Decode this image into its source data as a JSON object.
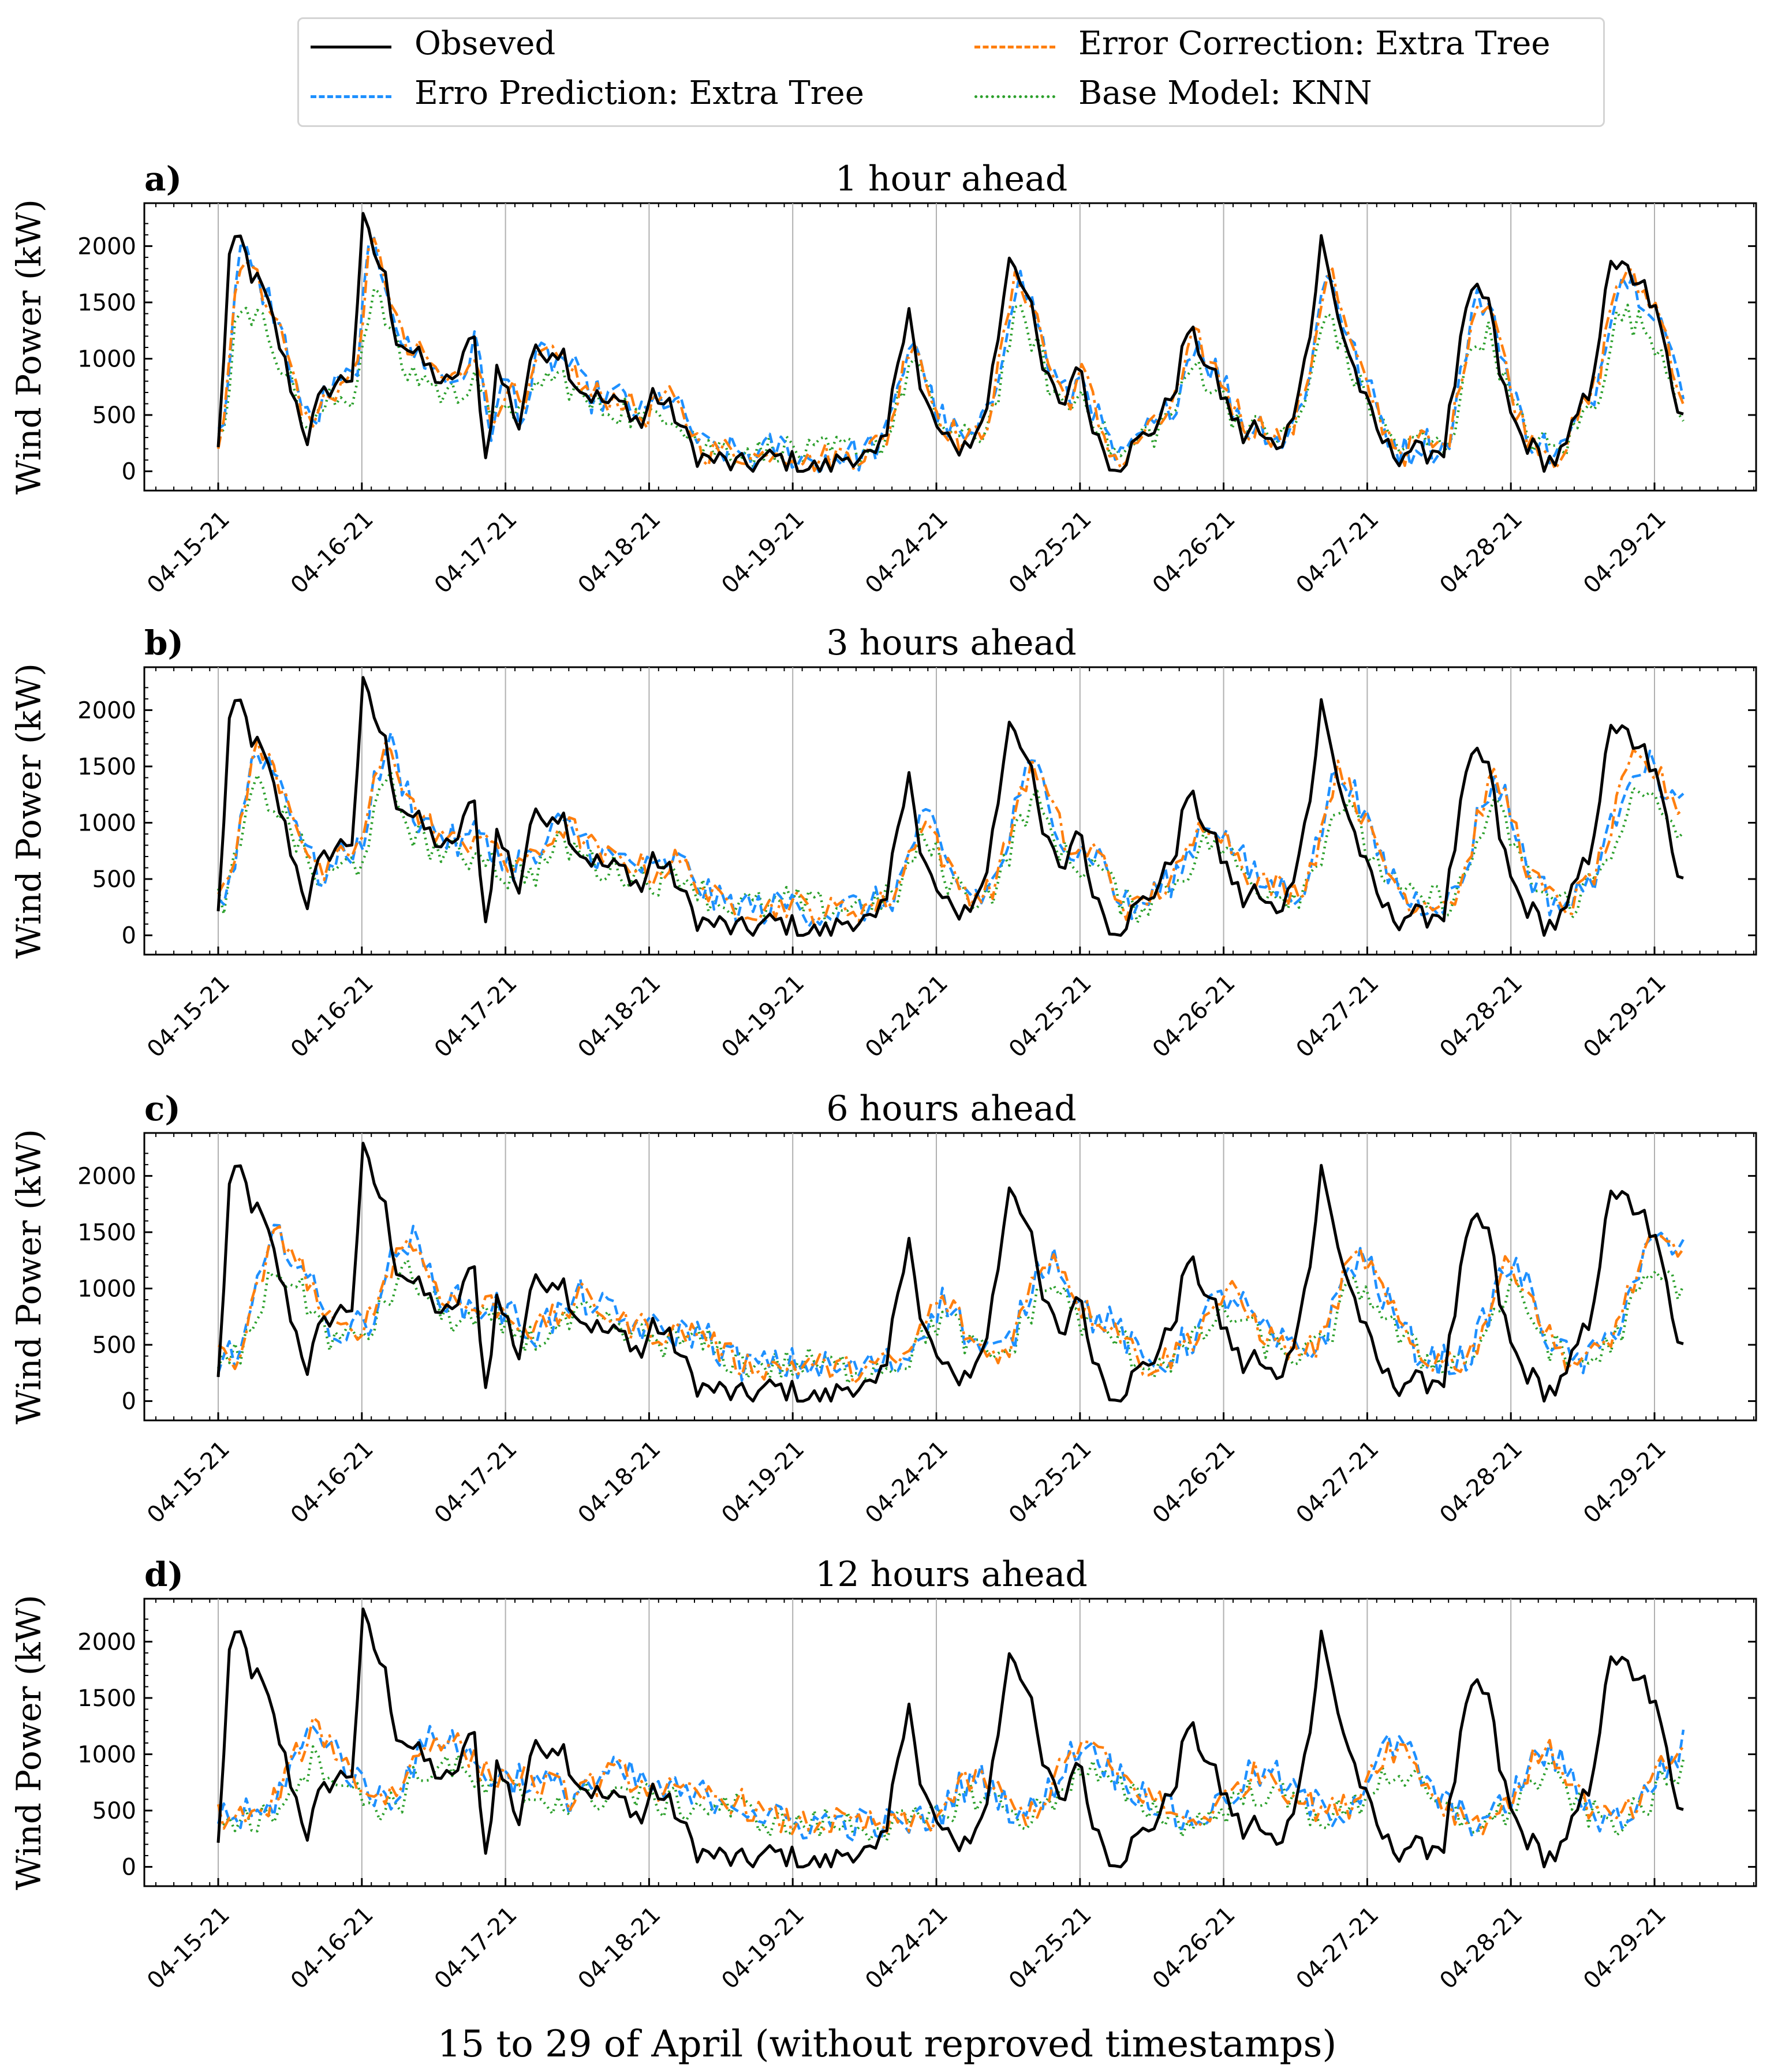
{
  "chart_data": {
    "type": "line",
    "x_tick_labels": [
      "04-15-21",
      "04-16-21",
      "04-17-21",
      "04-18-21",
      "04-19-21",
      "04-24-21",
      "04-25-21",
      "04-26-21",
      "04-27-21",
      "04-28-21",
      "04-29-21"
    ],
    "xlabel": "15 to 29 of April (without reproved timestamps)",
    "ylabel": "Wind Power (kW)",
    "ylim": [
      -120,
      2330
    ],
    "y_ticks": [
      0,
      500,
      1000,
      1500,
      2000
    ],
    "legend": {
      "placement": "top-center",
      "entries": [
        {
          "name": "Obseved",
          "color": "#000000",
          "style": "solid"
        },
        {
          "name": "Error Correction: Extra Tree",
          "color": "#ff7f0e",
          "style": "dashdot"
        },
        {
          "name": "Erro Prediction: Extra Tree",
          "color": "#1e90ff",
          "style": "dashed"
        },
        {
          "name": "Base Model: KNN",
          "color": "#2ca02c",
          "style": "dotted"
        }
      ]
    },
    "observed_daily_profile": [
      [
        180,
        1900,
        2050,
        1750,
        1600,
        1300,
        950,
        600,
        300,
        600,
        750,
        800
      ],
      [
        850,
        2200,
        1950,
        1700,
        1200,
        1100,
        1000,
        900,
        800,
        750,
        1050,
        1150
      ],
      [
        100,
        900,
        700,
        400,
        1000,
        1050,
        1100,
        1050,
        800,
        700,
        650,
        600
      ],
      [
        600,
        550,
        400,
        700,
        600,
        500,
        300,
        150,
        100,
        100,
        60,
        50
      ],
      [
        50,
        100,
        120,
        100,
        60,
        30,
        20,
        40,
        120,
        150,
        130,
        100
      ],
      [
        300,
        1000,
        1500,
        700,
        500,
        300,
        200,
        250,
        300,
        600,
        1200,
        1950
      ],
      [
        1750,
        1400,
        900,
        700,
        600,
        1000,
        600,
        300,
        100,
        80,
        200,
        300
      ],
      [
        400,
        550,
        800,
        1250,
        1100,
        900,
        700,
        500,
        300,
        400,
        250,
        250
      ],
      [
        350,
        800,
        1200,
        2050,
        1600,
        1200,
        900,
        600,
        350,
        200,
        150,
        200
      ],
      [
        150,
        200,
        200,
        800,
        1400,
        1600,
        1500,
        900,
        500,
        300,
        200,
        100
      ],
      [
        100,
        200,
        500,
        700,
        1250,
        1800,
        1900,
        1600,
        1650,
        1400,
        1000,
        600
      ]
    ],
    "panels": [
      {
        "letter": "a)",
        "title": "1 hour ahead",
        "horizon_hours": 1
      },
      {
        "letter": "b)",
        "title": "3 hours ahead",
        "horizon_hours": 3
      },
      {
        "letter": "c)",
        "title": "6 hours ahead",
        "horizon_hours": 6
      },
      {
        "letter": "d)",
        "title": "12 hours ahead",
        "horizon_hours": 12
      }
    ]
  }
}
